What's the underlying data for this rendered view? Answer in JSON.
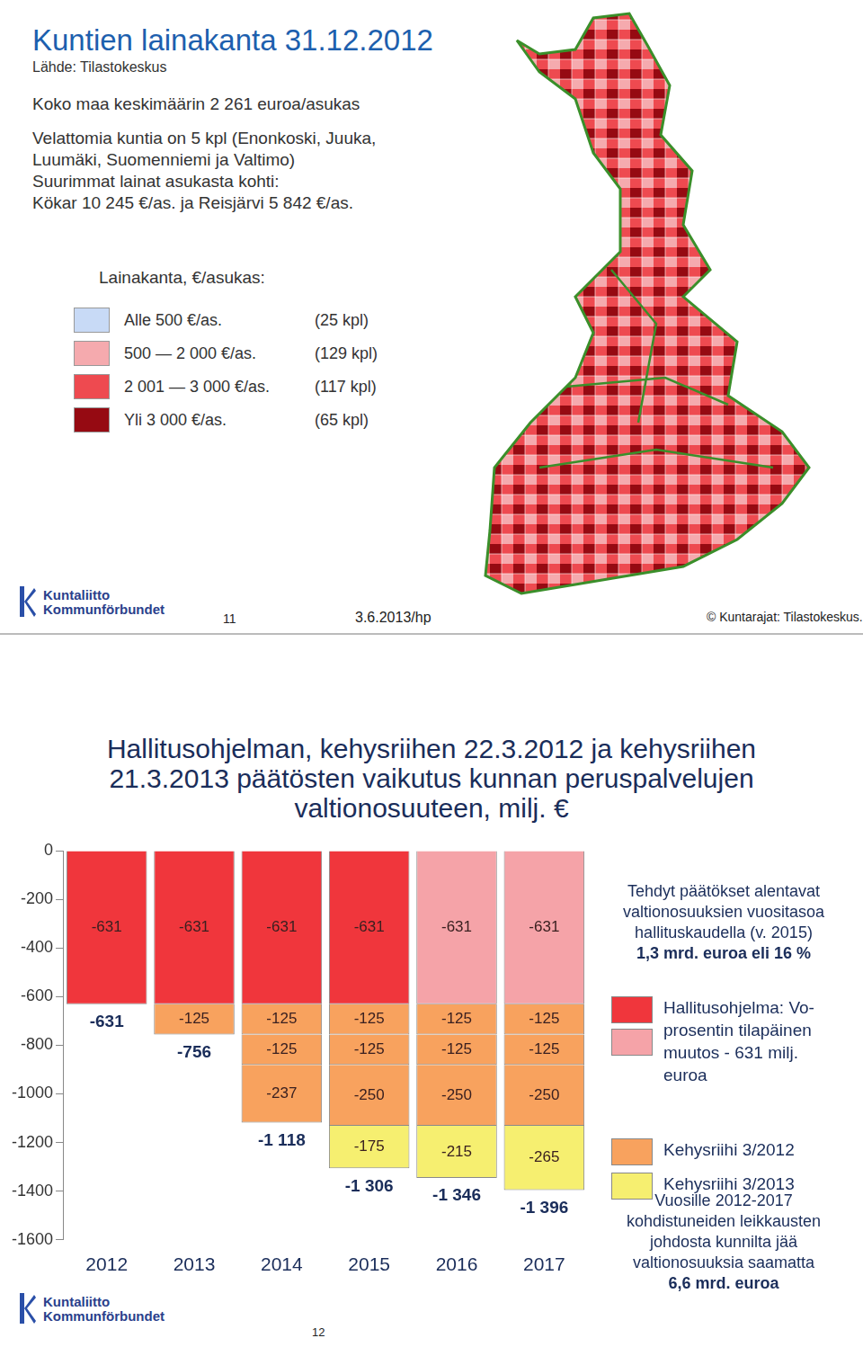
{
  "map_slide": {
    "title": "Kuntien lainakanta 31.12.2012",
    "source": "Lähde: Tilastokeskus",
    "lines": [
      "Koko maa keskimäärin 2 261 euroa/asukas",
      "Velattomia kuntia on 5 kpl (Enonkoski, Juuka,",
      "Luumäki, Suomenniemi ja Valtimo)",
      "Suurimmat lainat asukasta kohti:",
      "Kökar 10 245 €/as. ja Reisjärvi 5 842 €/as."
    ],
    "legend_title": "Lainakanta, €/asukas:",
    "legend": [
      {
        "label": "Alle 500 €/as.",
        "count": "(25 kpl)",
        "color": "#c8daf6"
      },
      {
        "label": "500 — 2 000 €/as.",
        "count": "(129 kpl)",
        "color": "#f5aaae"
      },
      {
        "label": "2 001 — 3 000 €/as.",
        "count": "(117 kpl)",
        "color": "#ee4a50"
      },
      {
        "label": "Yli 3 000 €/as.",
        "count": "(65 kpl)",
        "color": "#960a12"
      }
    ],
    "logo": [
      "Kuntaliitto",
      "Kommunförbundet"
    ],
    "page": "11",
    "date": "3.6.2013/hp",
    "credit": "© Kuntarajat: Tilastokeskus."
  },
  "chart_data": {
    "type": "bar",
    "title": "Hallitusohjelman, kehysriihen 22.3.2012 ja kehysriihen 21.3.2013 päätösten vaikutus kunnan peruspalvelujen valtionosuuteen, milj. €",
    "categories": [
      "2012",
      "2013",
      "2014",
      "2015",
      "2016",
      "2017"
    ],
    "stacked": true,
    "data_labels": true,
    "grid": false,
    "legend": "right",
    "ylim": [
      -1600,
      0
    ],
    "yticks": [
      -1600,
      -1400,
      -1200,
      -1000,
      -800,
      -600,
      -400,
      -200,
      0
    ],
    "series": [
      {
        "name": "Hallitusohjelma: Vo-prosentin tilapäinen muutos - 631 milj. euroa",
        "colors": [
          "#f0363c",
          "#f0363c",
          "#f0363c",
          "#f0363c",
          "#f5a3a8",
          "#f5a3a8"
        ],
        "values": [
          -631,
          -631,
          -631,
          -631,
          -631,
          -631
        ]
      },
      {
        "name": "Kehysriihi 3/2012",
        "color": "#f8a25e",
        "values": [
          null,
          -125,
          -125,
          -125,
          -125,
          -125
        ]
      },
      {
        "name": "Kehysriihi 3/2012",
        "color": "#f8a25e",
        "values": [
          null,
          null,
          -125,
          -125,
          -125,
          -125
        ]
      },
      {
        "name": "Kehysriihi 3/2012",
        "color": "#f8a25e",
        "values": [
          null,
          null,
          -237,
          -250,
          -250,
          -250
        ]
      },
      {
        "name": "Kehysriihi 3/2013",
        "color": "#f6ef70",
        "values": [
          null,
          null,
          null,
          -175,
          -215,
          -265
        ]
      }
    ],
    "totals": [
      -631,
      -756,
      -1118,
      -1306,
      -1346,
      -1396
    ],
    "total_labels": [
      "-631",
      "-756",
      "-1 118",
      "-1 306",
      "-1 346",
      "-1 396"
    ],
    "annotations": [
      {
        "lines": [
          "Tehdyt päätökset  alentavat",
          "valtionosuuksien vuositasoa",
          "hallituskaudella (v. 2015)"
        ],
        "emphasis": "1,3 mrd. euroa eli 16 %"
      },
      {
        "lines": [
          "Vuosille 2012-2017",
          "kohdistuneiden leikkausten",
          "johdosta kunnilta jää",
          "valtionosuuksia saamatta"
        ],
        "emphasis": "6,6 mrd. euroa"
      }
    ]
  },
  "chart_slide": {
    "logo": [
      "Kuntaliitto",
      "Kommunförbundet"
    ],
    "page": "12"
  }
}
